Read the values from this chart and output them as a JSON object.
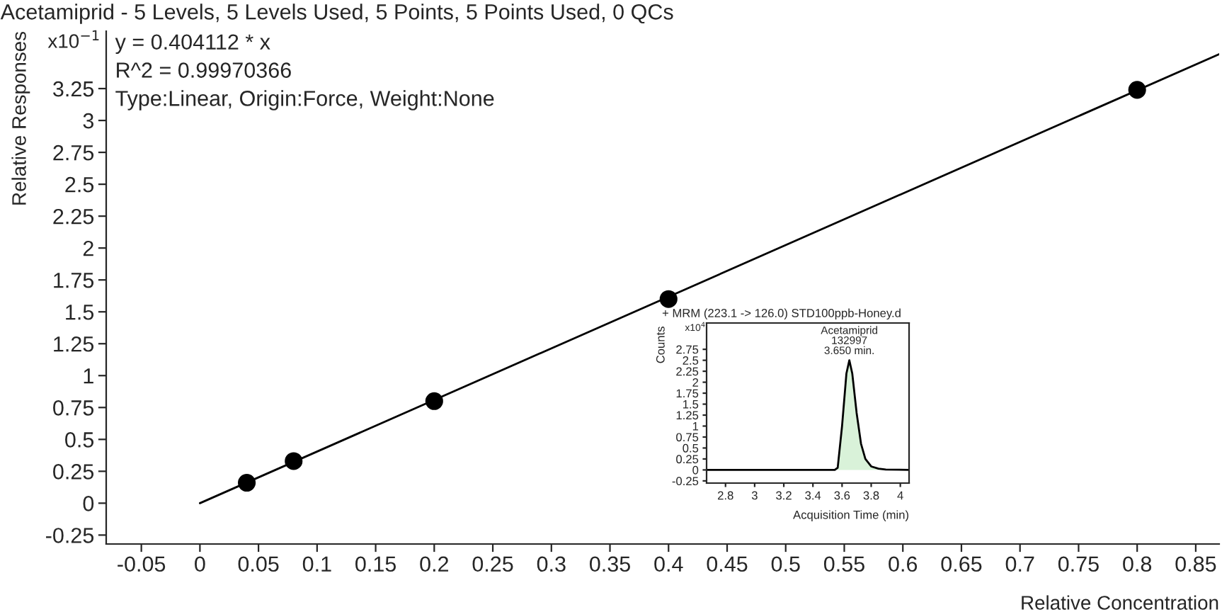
{
  "chart_data": [
    {
      "type": "scatter",
      "title": "Acetamiprid - 5 Levels, 5 Levels Used, 5 Points, 5 Points Used, 0 QCs",
      "xlabel": "Relative Concentration",
      "ylabel": "Relative Responses",
      "annotations": [
        "x10$^{−1}$",
        "y = 0.404112 * x",
        "R^2 = 0.99970366",
        "Type:Linear, Origin:Force, Weight:None"
      ],
      "series": [
        {
          "color": "#000000",
          "marker": "circle",
          "x": [
            0.04,
            0.08,
            0.2,
            0.4,
            0.8
          ],
          "values": [
            0.16,
            0.33,
            0.8,
            1.6,
            3.24
          ]
        },
        {
          "type": "line",
          "color": "#000000",
          "x": [
            0,
            0.87
          ],
          "values": [
            0,
            3.52
          ]
        }
      ],
      "grid": false,
      "legend": false,
      "xlim": [
        -0.08,
        0.87
      ],
      "xticks": [
        -0.05,
        0,
        0.05,
        0.1,
        0.15,
        0.2,
        0.25,
        0.3,
        0.35,
        0.4,
        0.45,
        0.5,
        0.55,
        0.6,
        0.65,
        0.7,
        0.75,
        0.8,
        0.85
      ],
      "ylim": [
        -0.32,
        3.7
      ],
      "yticks": [
        -0.25,
        0,
        0.25,
        0.5,
        0.75,
        1,
        1.25,
        1.5,
        1.75,
        2,
        2.25,
        2.5,
        2.75,
        3,
        3.25
      ]
    },
    {
      "type": "area",
      "title": "+ MRM (223.1 -> 126.0) STD100ppb-Honey.d",
      "xlabel": "Acquisition Time (min)",
      "ylabel": "Counts",
      "annotations": [
        "x10$^{4}$",
        {
          "text": "Acetamiprid\n132997\n3.650 min.",
          "x": 3.65,
          "y": 2.5
        }
      ],
      "series": [
        {
          "color": "#d9f2d9",
          "x": [
            2.67,
            3.55,
            3.57,
            3.6,
            3.63,
            3.65,
            3.67,
            3.7,
            3.73,
            3.76,
            3.8,
            3.85,
            3.9,
            4.06
          ],
          "values": [
            0,
            0,
            0.05,
            1.0,
            2.2,
            2.5,
            2.2,
            1.3,
            0.6,
            0.25,
            0.08,
            0.03,
            0.01,
            0
          ]
        }
      ],
      "grid": false,
      "legend": false,
      "xlim": [
        2.67,
        4.06
      ],
      "xticks": [
        2.8,
        3,
        3.2,
        3.4,
        3.6,
        3.8,
        4
      ],
      "ylim": [
        -0.3,
        3.35
      ],
      "yticks": [
        -0.25,
        0,
        0.25,
        0.5,
        0.75,
        1,
        1.25,
        1.5,
        1.75,
        2,
        2.25,
        2.5,
        2.75
      ]
    }
  ]
}
